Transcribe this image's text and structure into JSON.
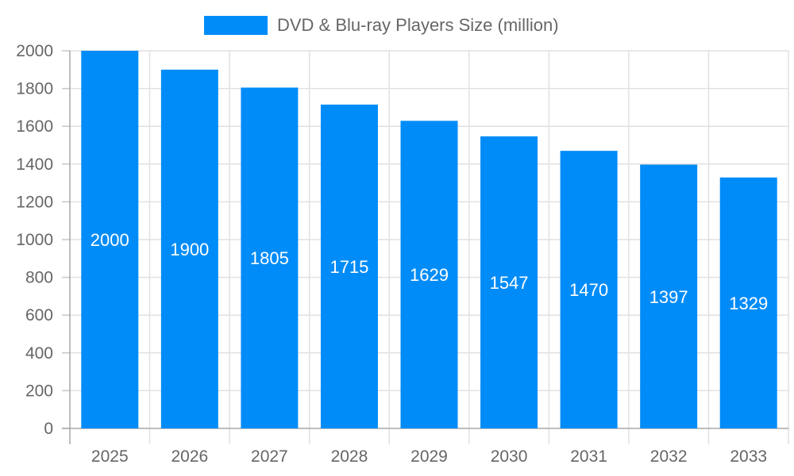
{
  "chart_data": {
    "type": "bar",
    "title": "",
    "xlabel": "",
    "ylabel": "",
    "legend": [
      "DVD & Blu-ray Players Size (million)"
    ],
    "legend_position": "top",
    "categories": [
      "2025",
      "2026",
      "2027",
      "2028",
      "2029",
      "2030",
      "2031",
      "2032",
      "2033"
    ],
    "series": [
      {
        "name": "DVD & Blu-ray Players Size (million)",
        "color": "#008cf8",
        "values": [
          2000,
          1900,
          1805,
          1715,
          1629,
          1547,
          1470,
          1397,
          1329
        ]
      }
    ],
    "data_labels": [
      "2000",
      "1900",
      "1805",
      "1715",
      "1629",
      "1547",
      "1470",
      "1397",
      "1329"
    ],
    "ylim": [
      0,
      2000
    ],
    "yticks": [
      0,
      200,
      400,
      600,
      800,
      1000,
      1200,
      1400,
      1600,
      1800,
      2000
    ],
    "grid": true
  },
  "legend": {
    "label": "DVD & Blu-ray Players Size (million)",
    "color": "#008cf8"
  }
}
